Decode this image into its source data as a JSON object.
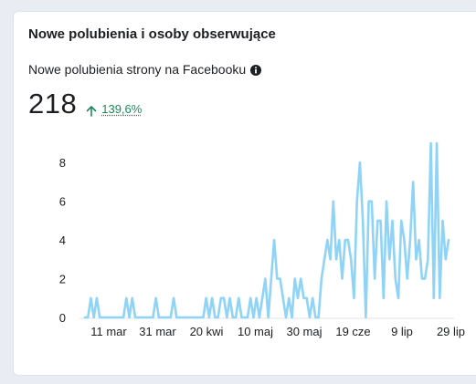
{
  "card": {
    "title": "Nowe polubienia i osoby obserwujące",
    "metric_label": "Nowe polubienia strony na Facebooku",
    "icon": "info-icon",
    "total": "218",
    "change": "139,6%",
    "change_icon": "arrow-up-icon",
    "change_color": "#1b8a5a"
  },
  "chart_data": {
    "type": "line",
    "title": "",
    "xlabel": "",
    "ylabel": "",
    "ylim": [
      0,
      9
    ],
    "yticks": [
      0,
      2,
      4,
      6,
      8
    ],
    "xtick_labels": [
      "11 mar",
      "31 mar",
      "20 kwi",
      "10 maj",
      "30 maj",
      "19 cze",
      "9 lip",
      "29 lip"
    ],
    "grid": false,
    "line_color": "#8fd3f7",
    "series": [
      {
        "name": "",
        "values": [
          0,
          0,
          1,
          0,
          1,
          0,
          0,
          0,
          0,
          0,
          0,
          0,
          0,
          0,
          1,
          0,
          1,
          0,
          0,
          0,
          0,
          0,
          0,
          0,
          1,
          0,
          0,
          0,
          0,
          0,
          1,
          0,
          0,
          0,
          0,
          0,
          0,
          0,
          0,
          0,
          0,
          1,
          0,
          1,
          0,
          0,
          1,
          1,
          0,
          1,
          0,
          0,
          1,
          0,
          0,
          0,
          1,
          0,
          1,
          0,
          1,
          2,
          0,
          2,
          4,
          2,
          2,
          1,
          0,
          1,
          0,
          2,
          1,
          2,
          1,
          1,
          0,
          1,
          0,
          0,
          2,
          3,
          4,
          3,
          6,
          3,
          4,
          2,
          4,
          4,
          3,
          1,
          6,
          8,
          5,
          0,
          6,
          6,
          2,
          5,
          5,
          1,
          6,
          3,
          5,
          2,
          1,
          5,
          4,
          2,
          4,
          7,
          3,
          4,
          2,
          2,
          3,
          9,
          1,
          9,
          1,
          5,
          3,
          4
        ]
      }
    ]
  }
}
